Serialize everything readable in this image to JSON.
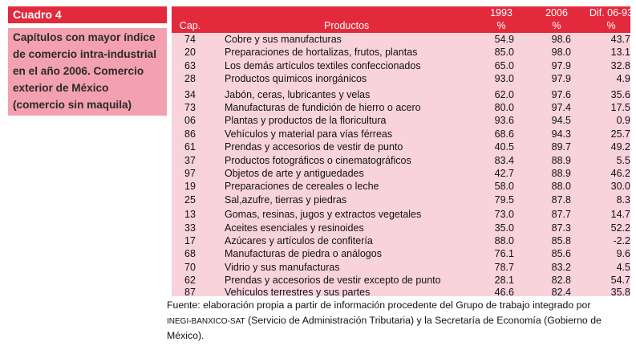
{
  "title": "Cuadro 4",
  "caption_lines": [
    "Capítulos con mayor índice",
    "de comercio intra-industrial",
    "en el año 2006. Comercio",
    "exterior de México",
    "(comercio sin maquila)"
  ],
  "header": {
    "cap": "Cap.",
    "productos": "Productos",
    "y1993": "1993",
    "y2006": "2006",
    "dif": "Dif. 06-93",
    "pct": "%"
  },
  "rows": [
    {
      "cap": "74",
      "product": "Cobre y sus manufacturas",
      "v1993": "54.9",
      "v2006": "98.6",
      "dif": "43.7"
    },
    {
      "cap": "20",
      "product": "Preparaciones de hortalizas, frutos, plantas",
      "v1993": "85.0",
      "v2006": "98.0",
      "dif": "13.1"
    },
    {
      "cap": "63",
      "product": "Los demás artículos textiles confeccionados",
      "v1993": "65.0",
      "v2006": "97.9",
      "dif": "32.8"
    },
    {
      "cap": "28",
      "product": "Productos químicos inorgánicos",
      "v1993": "93.0",
      "v2006": "97.9",
      "dif": "4.9"
    },
    {
      "cap": "34",
      "product": "Jabón, ceras, lubricantes y velas",
      "v1993": "62.0",
      "v2006": "97.6",
      "dif": "35.6"
    },
    {
      "cap": "73",
      "product": "Manufacturas de fundición de hierro o acero",
      "v1993": "80.0",
      "v2006": "97.4",
      "dif": "17.5"
    },
    {
      "cap": "06",
      "product": "Plantas y productos de la floricultura",
      "v1993": "93.6",
      "v2006": "94.5",
      "dif": "0.9"
    },
    {
      "cap": "86",
      "product": "Vehículos y material para vías férreas",
      "v1993": "68.6",
      "v2006": "94.3",
      "dif": "25.7"
    },
    {
      "cap": "61",
      "product": "Prendas y accesorios de vestir de punto",
      "v1993": "40.5",
      "v2006": "89.7",
      "dif": "49.2"
    },
    {
      "cap": "37",
      "product": "Productos fotográficos o cinematográficos",
      "v1993": "83.4",
      "v2006": "88.9",
      "dif": "5.5"
    },
    {
      "cap": "97",
      "product": "Objetos de arte y antiguedades",
      "v1993": "42.7",
      "v2006": "88.9",
      "dif": "46.2"
    },
    {
      "cap": "19",
      "product": "Preparaciones de cereales o leche",
      "v1993": "58.0",
      "v2006": "88.0",
      "dif": "30.0"
    },
    {
      "cap": "25",
      "product": "Sal,azufre, tierras y piedras",
      "v1993": "79.5",
      "v2006": "87.8",
      "dif": "8.3"
    },
    {
      "cap": "13",
      "product": "Gomas, resinas, jugos y extractos vegetales",
      "v1993": "73.0",
      "v2006": "87.7",
      "dif": "14.7"
    },
    {
      "cap": "33",
      "product": "Aceites esenciales y resinoides",
      "v1993": "35.0",
      "v2006": "87.3",
      "dif": "52.2"
    },
    {
      "cap": "17",
      "product": "Azúcares y artículos de confitería",
      "v1993": "88.0",
      "v2006": "85.8",
      "dif": "-2.2"
    },
    {
      "cap": "68",
      "product": "Manufacturas de piedra o análogos",
      "v1993": "76.1",
      "v2006": "85.6",
      "dif": "9.6"
    },
    {
      "cap": "70",
      "product": "Vidrio y sus manufacturas",
      "v1993": "78.7",
      "v2006": "83.2",
      "dif": "4.5"
    },
    {
      "cap": "62",
      "product": "Prendas y accesorios de vestir excepto de punto",
      "v1993": "28.1",
      "v2006": "82.8",
      "dif": "54.7"
    },
    {
      "cap": "87",
      "product": "Vehículos terrestres y sus partes",
      "v1993": "46.6",
      "v2006": "82.4",
      "dif": "35.8"
    }
  ],
  "footer": {
    "line1": "Fuente: elaboración propia a partir de información procedente del Grupo de trabajo integrado por",
    "line2_small": "INEGI-BANXICO-SAT",
    "line2_rest": " (Servicio de Administración Tributaria) y la Secretaría de Economía (Gobierno de",
    "line3": "México)."
  },
  "colors": {
    "header_red": "#e32a3c",
    "caption_pink": "#f3a0b0",
    "table_pink": "#f8d3dc"
  }
}
